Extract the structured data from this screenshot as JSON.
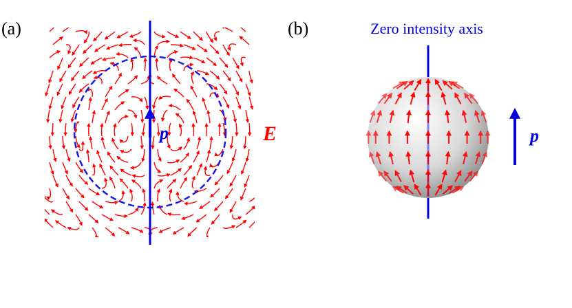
{
  "panel_a": {
    "label": "(a)",
    "field_label": "E",
    "dipole_label": "p"
  },
  "panel_b": {
    "label": "(b)",
    "axis_label": "Zero intensity axis",
    "dipole_label": "p"
  }
}
